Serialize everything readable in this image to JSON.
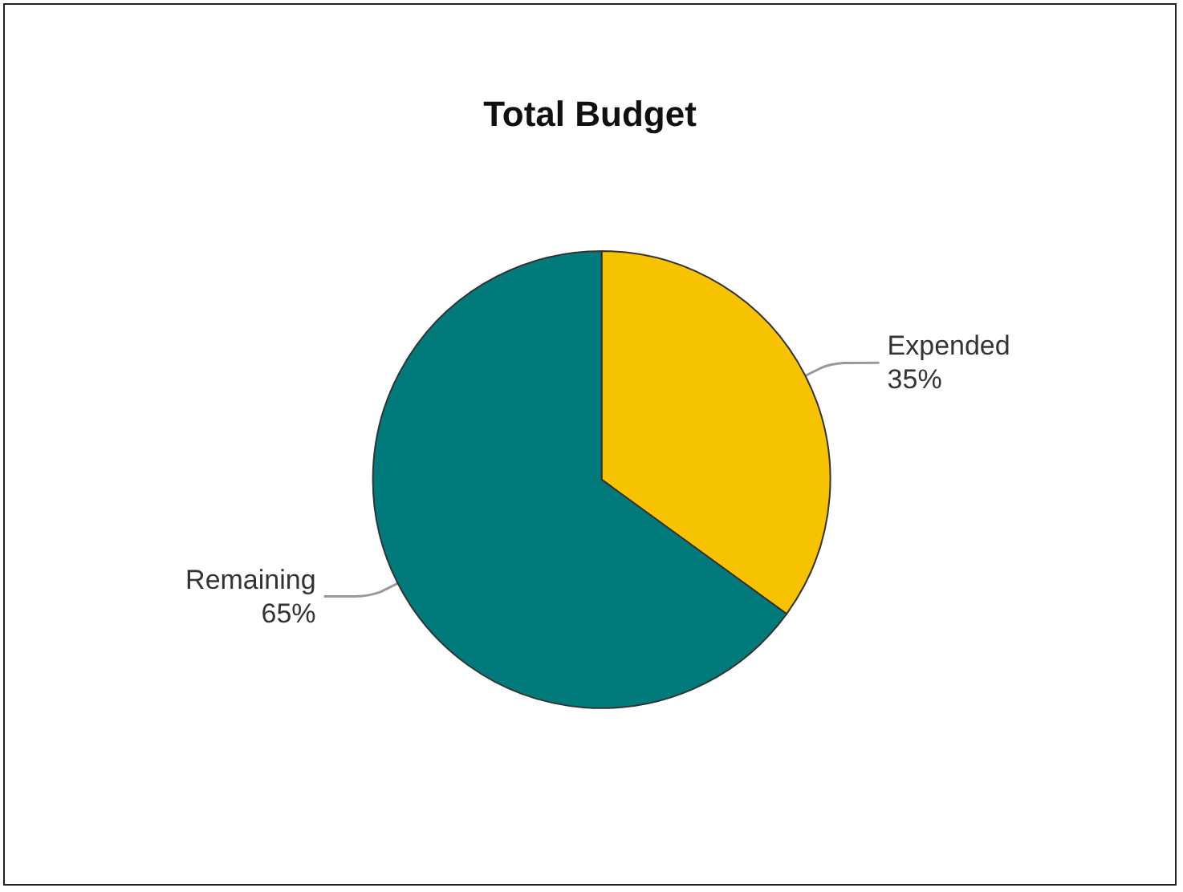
{
  "chart_data": {
    "type": "pie",
    "title": "Total Budget",
    "categories": [
      "Expended",
      "Remaining"
    ],
    "values": [
      35,
      65
    ],
    "colors": [
      "#f7c200",
      "#007a7a"
    ],
    "value_labels": [
      "35%",
      "65%"
    ],
    "legend": false
  }
}
